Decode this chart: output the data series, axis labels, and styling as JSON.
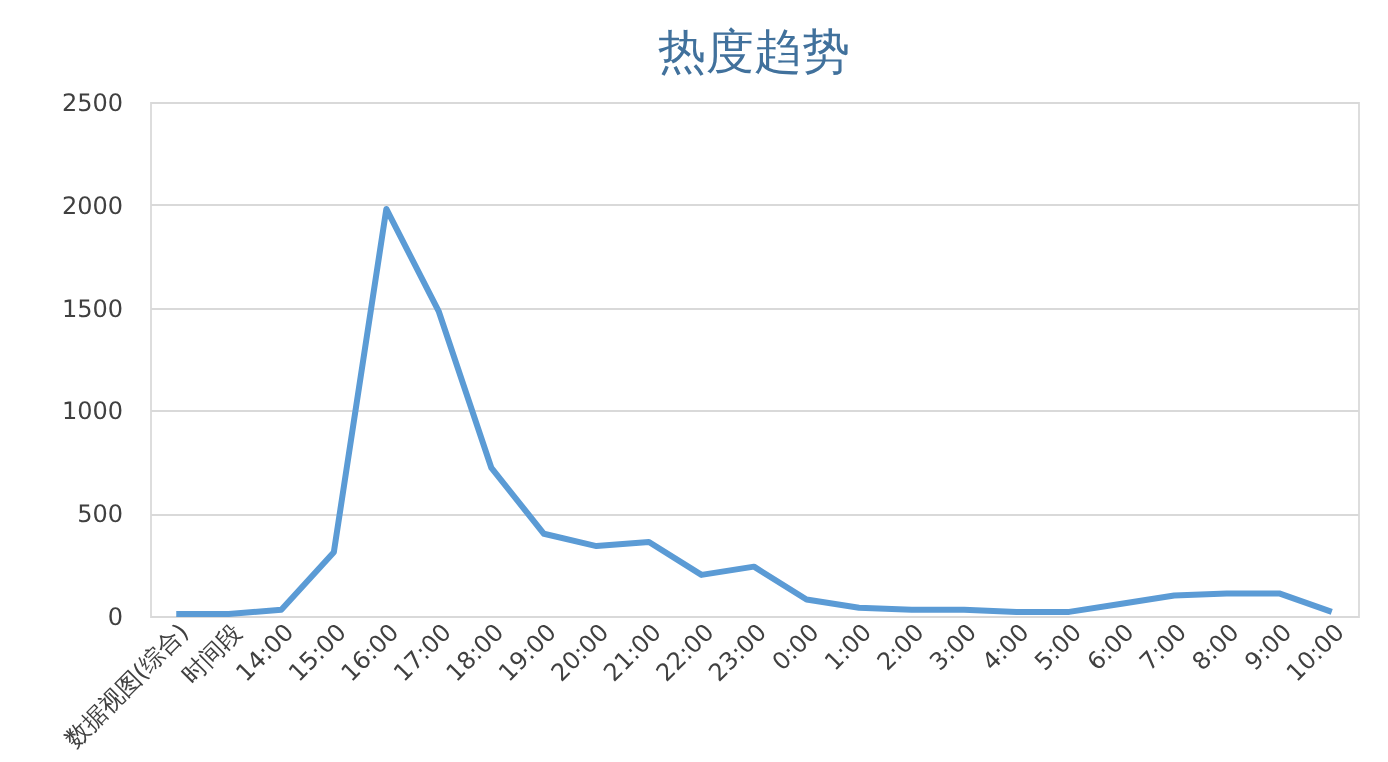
{
  "chart_data": {
    "type": "line",
    "title": "热度趋势",
    "categories": [
      "数据视图(综合)",
      "时间段",
      "14:00",
      "15:00",
      "16:00",
      "17:00",
      "18:00",
      "19:00",
      "20:00",
      "21:00",
      "22:00",
      "23:00",
      "0:00",
      "1:00",
      "2:00",
      "3:00",
      "4:00",
      "5:00",
      "6:00",
      "7:00",
      "8:00",
      "9:00",
      "10:00"
    ],
    "series": [
      {
        "color": "#5b9bd5",
        "values": [
          10,
          10,
          30,
          310,
          1980,
          1480,
          720,
          400,
          340,
          360,
          200,
          240,
          80,
          40,
          30,
          30,
          20,
          20,
          60,
          100,
          110,
          110,
          20
        ]
      }
    ],
    "ylim": [
      0,
      2500
    ],
    "yticks": [
      0,
      500,
      1000,
      1500,
      2000,
      2500
    ],
    "grid": "y",
    "legend": false,
    "marker": "none",
    "line_style": "solid"
  }
}
